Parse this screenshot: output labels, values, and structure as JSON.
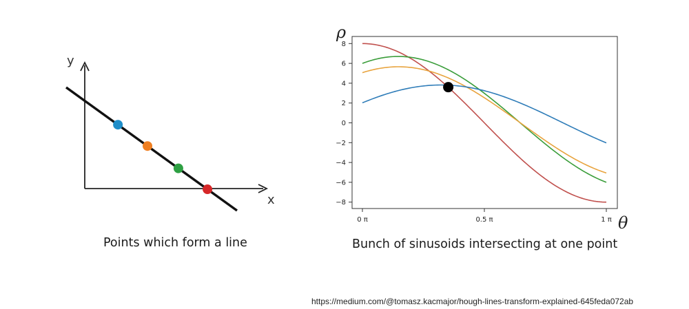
{
  "left_panel": {
    "caption": "Points which form a line",
    "x_axis_label": "x",
    "y_axis_label": "y",
    "points": [
      {
        "color": "#1f8ec9"
      },
      {
        "color": "#ef7f22"
      },
      {
        "color": "#2ea043"
      },
      {
        "color": "#d62728"
      }
    ]
  },
  "right_panel": {
    "caption": "Bunch of sinusoids intersecting at one point",
    "x_axis_label": "θ",
    "y_axis_label": "ρ",
    "intersection_marker": "black-dot"
  },
  "source_url": "https://medium.com/@tomasz.kacmajor/hough-lines-transform-explained-645feda072ab",
  "chart_data": {
    "type": "line",
    "title": "",
    "xlabel": "θ",
    "ylabel": "ρ",
    "xlim_pi": [
      0,
      1
    ],
    "ylim": [
      -8.6,
      8.6
    ],
    "x_ticks": [
      "0 π",
      "0.5 π",
      "1 π"
    ],
    "y_ticks": [
      8,
      6,
      4,
      2,
      0,
      -2,
      -4,
      -6,
      -8
    ],
    "grid": false,
    "intersection": {
      "theta_pi": 0.352,
      "rho": 3.6
    },
    "series": [
      {
        "color": "#c0504d",
        "amplitude": 8.0,
        "phase_pi": 0.0,
        "start_rho": 8,
        "end_rho": -8
      },
      {
        "color": "#3a9d3a",
        "amplitude": 6.7,
        "phase_pi": -0.1468,
        "start_rho": 6,
        "end_rho": -6
      },
      {
        "color": "#e8a33d",
        "amplitude": 5.66,
        "phase_pi": -0.1476,
        "start_rho": 4,
        "end_rho": -4
      },
      {
        "color": "#2e7cb8",
        "amplitude": 3.82,
        "phase_pi": -0.3226,
        "start_rho": 2,
        "end_rho": -2
      }
    ]
  }
}
